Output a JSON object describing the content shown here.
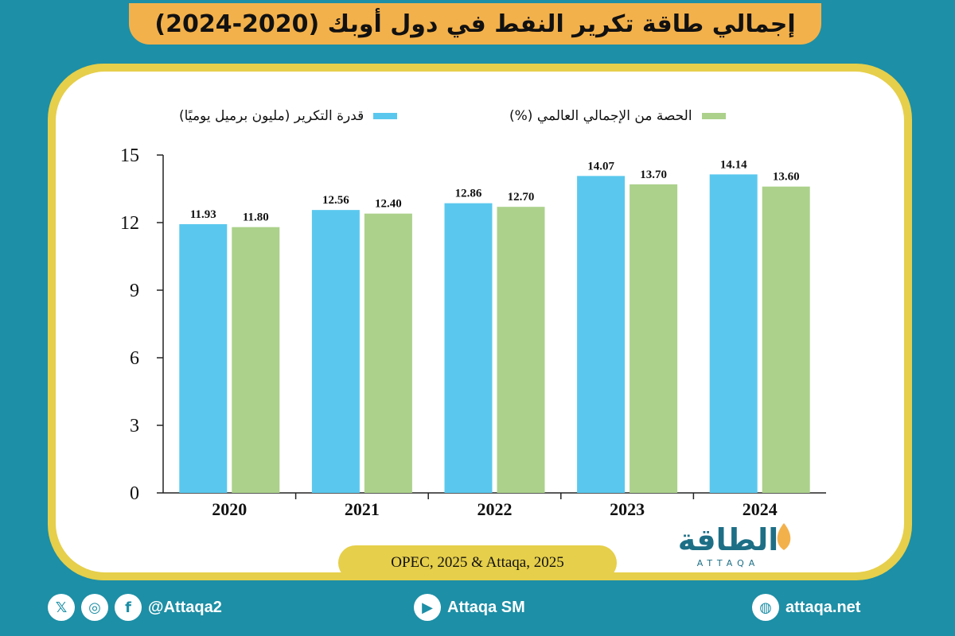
{
  "header": {
    "title": "إجمالي طاقة تكرير النفط في دول أوبك (2020-2024)"
  },
  "chart_data": {
    "type": "bar",
    "categories": [
      "2020",
      "2021",
      "2022",
      "2023",
      "2024"
    ],
    "series": [
      {
        "name": "قدرة التكرير (مليون برميل يوميًا)",
        "color": "#5ac8ee",
        "values": [
          11.93,
          12.56,
          12.86,
          14.07,
          14.14
        ],
        "labels": [
          "11.93",
          "12.56",
          "12.86",
          "14.07",
          "14.14"
        ]
      },
      {
        "name": "الحصة من الإجمالي العالمي (%)",
        "color": "#acd18b",
        "values": [
          11.8,
          12.4,
          12.7,
          13.7,
          13.6
        ],
        "labels": [
          "11.80",
          "12.40",
          "12.70",
          "13.70",
          "13.60"
        ]
      }
    ],
    "yticks": [
      "0",
      "3",
      "6",
      "9",
      "12",
      "15"
    ],
    "ylim": [
      0,
      15
    ],
    "grid": false,
    "legend": "top"
  },
  "source": "OPEC, 2025 & Attaqa, 2025",
  "logo": {
    "text": "الطاقة",
    "subtext": "ATTAQA"
  },
  "footer": {
    "social_handle": "@Attaqa2",
    "youtube": "Attaqa SM",
    "website": "attaqa.net",
    "icons": [
      "x-icon",
      "instagram-icon",
      "facebook-icon",
      "youtube-icon",
      "globe-icon"
    ]
  }
}
